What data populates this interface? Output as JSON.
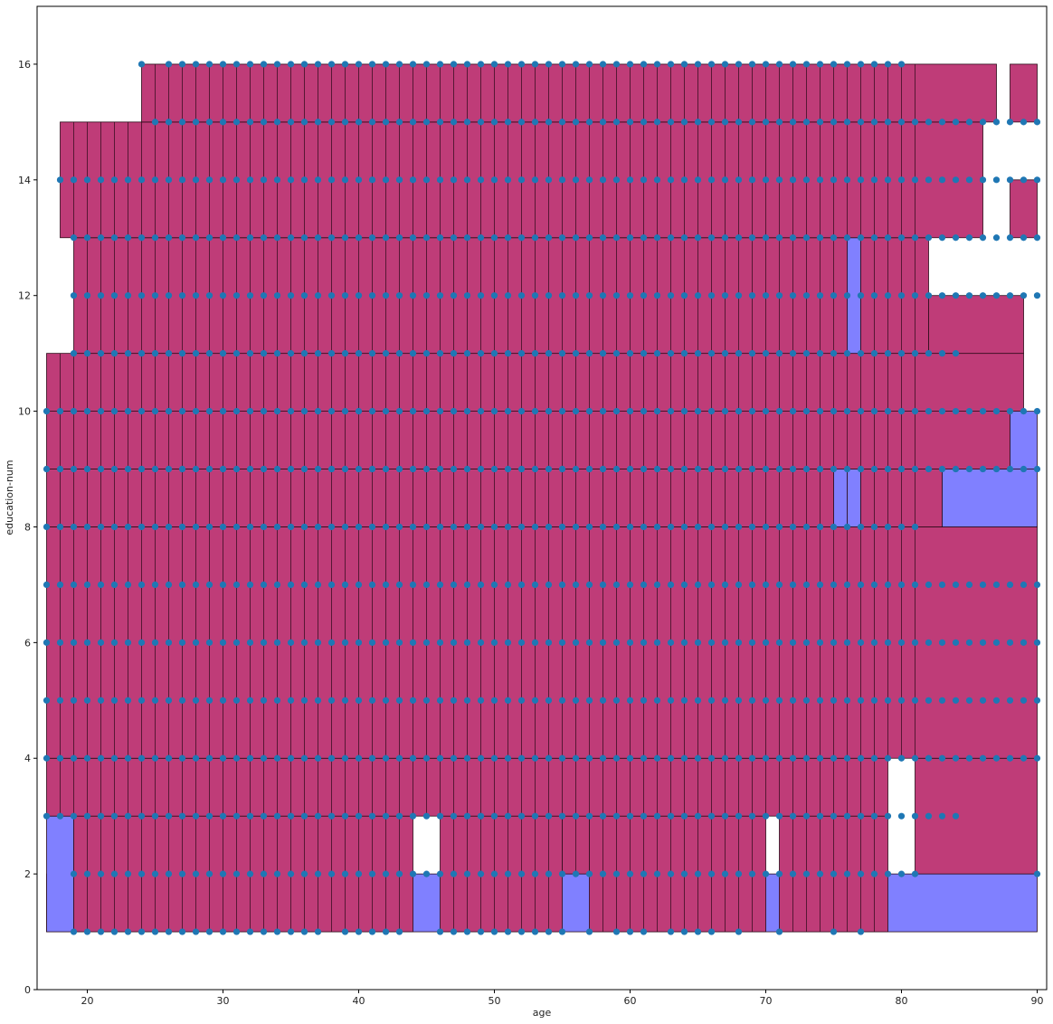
{
  "chart_data": {
    "type": "scatter",
    "xlabel": "age",
    "ylabel": "education-num",
    "xlim": [
      16.3,
      90.7
    ],
    "ylim": [
      0,
      17
    ],
    "xticks": [
      20,
      30,
      40,
      50,
      60,
      70,
      80,
      90
    ],
    "yticks": [
      0,
      2,
      4,
      6,
      8,
      10,
      12,
      14,
      16
    ],
    "grid": false,
    "colors": {
      "magenta_region": "#bf3c78",
      "blue_region": "#8080ff",
      "points": "#1f77b4",
      "edge": "#2a0a18"
    },
    "regions": [
      {
        "x0": 17,
        "x1": 90,
        "y0": 1,
        "y1": 2,
        "class": "blue"
      },
      {
        "x0": 17,
        "x1": 19,
        "y0": 1,
        "y1": 3,
        "class": "blue"
      },
      {
        "x0": 19,
        "x1": 44,
        "y0": 1,
        "y1": 3,
        "class": "magenta"
      },
      {
        "x0": 46,
        "x1": 55,
        "y0": 1,
        "y1": 3,
        "class": "magenta"
      },
      {
        "x0": 55,
        "x1": 57,
        "y0": 2,
        "y1": 3,
        "class": "magenta"
      },
      {
        "x0": 57,
        "x1": 70,
        "y0": 1,
        "y1": 3,
        "class": "magenta"
      },
      {
        "x0": 71,
        "x1": 79,
        "y0": 1,
        "y1": 3,
        "class": "magenta"
      },
      {
        "x0": 17,
        "x1": 79,
        "y0": 3,
        "y1": 4,
        "class": "magenta"
      },
      {
        "x0": 81,
        "x1": 90,
        "y0": 2,
        "y1": 4,
        "class": "magenta"
      },
      {
        "x0": 17,
        "x1": 90,
        "y0": 4,
        "y1": 8,
        "class": "magenta"
      },
      {
        "x0": 17,
        "x1": 75,
        "y0": 8,
        "y1": 9,
        "class": "magenta"
      },
      {
        "x0": 75,
        "x1": 76,
        "y0": 8,
        "y1": 9,
        "class": "blue"
      },
      {
        "x0": 76,
        "x1": 77,
        "y0": 8,
        "y1": 9,
        "class": "blue"
      },
      {
        "x0": 77,
        "x1": 83,
        "y0": 8,
        "y1": 9,
        "class": "magenta"
      },
      {
        "x0": 83,
        "x1": 90,
        "y0": 8,
        "y1": 9,
        "class": "blue"
      },
      {
        "x0": 17,
        "x1": 88,
        "y0": 9,
        "y1": 10,
        "class": "magenta"
      },
      {
        "x0": 88,
        "x1": 90,
        "y0": 9,
        "y1": 10,
        "class": "blue"
      },
      {
        "x0": 17,
        "x1": 89,
        "y0": 10,
        "y1": 11,
        "class": "magenta"
      },
      {
        "x0": 19,
        "x1": 76,
        "y0": 11,
        "y1": 13,
        "class": "magenta"
      },
      {
        "x0": 76,
        "x1": 77,
        "y0": 11,
        "y1": 13,
        "class": "blue"
      },
      {
        "x0": 77,
        "x1": 82,
        "y0": 11,
        "y1": 13,
        "class": "magenta"
      },
      {
        "x0": 82,
        "x1": 89,
        "y0": 11,
        "y1": 12,
        "class": "magenta"
      },
      {
        "x0": 18,
        "x1": 86,
        "y0": 13,
        "y1": 15,
        "class": "magenta"
      },
      {
        "x0": 88,
        "x1": 90,
        "y0": 13,
        "y1": 14,
        "class": "magenta"
      },
      {
        "x0": 24,
        "x1": 87,
        "y0": 15,
        "y1": 16,
        "class": "magenta"
      },
      {
        "x0": 88,
        "x1": 90,
        "y0": 15,
        "y1": 16,
        "class": "magenta"
      }
    ],
    "separators": [
      18,
      19,
      20,
      21,
      22,
      23,
      24,
      25,
      26,
      27,
      28,
      29,
      30,
      31,
      32,
      33,
      34,
      35,
      36,
      37,
      38,
      39,
      40,
      41,
      42,
      43,
      44,
      45,
      46,
      47,
      48,
      49,
      50,
      51,
      52,
      53,
      54,
      55,
      56,
      57,
      58,
      59,
      60,
      61,
      62,
      63,
      64,
      65,
      66,
      67,
      68,
      69,
      70,
      71,
      72,
      73,
      74,
      75,
      76,
      77,
      78,
      79,
      80,
      81
    ],
    "points_y": [
      1,
      2,
      3,
      4,
      5,
      6,
      7,
      8,
      9,
      10,
      11,
      12,
      13,
      14,
      15,
      16
    ],
    "points_xrange": [
      17,
      90
    ],
    "points": [
      {
        "x": 19,
        "y": 1
      },
      {
        "x": 20,
        "y": 1
      },
      {
        "x": 21,
        "y": 1
      },
      {
        "x": 22,
        "y": 1
      },
      {
        "x": 23,
        "y": 1
      },
      {
        "x": 24,
        "y": 1
      },
      {
        "x": 25,
        "y": 1
      },
      {
        "x": 26,
        "y": 1
      },
      {
        "x": 27,
        "y": 1
      },
      {
        "x": 28,
        "y": 1
      },
      {
        "x": 29,
        "y": 1
      },
      {
        "x": 30,
        "y": 1
      },
      {
        "x": 31,
        "y": 1
      },
      {
        "x": 32,
        "y": 1
      },
      {
        "x": 33,
        "y": 1
      },
      {
        "x": 34,
        "y": 1
      },
      {
        "x": 35,
        "y": 1
      },
      {
        "x": 36,
        "y": 1
      },
      {
        "x": 37,
        "y": 1
      },
      {
        "x": 39,
        "y": 1
      },
      {
        "x": 40,
        "y": 1
      },
      {
        "x": 41,
        "y": 1
      },
      {
        "x": 42,
        "y": 1
      },
      {
        "x": 43,
        "y": 1
      },
      {
        "x": 46,
        "y": 1
      },
      {
        "x": 47,
        "y": 1
      },
      {
        "x": 48,
        "y": 1
      },
      {
        "x": 49,
        "y": 1
      },
      {
        "x": 50,
        "y": 1
      },
      {
        "x": 51,
        "y": 1
      },
      {
        "x": 52,
        "y": 1
      },
      {
        "x": 53,
        "y": 1
      },
      {
        "x": 54,
        "y": 1
      },
      {
        "x": 55,
        "y": 1
      },
      {
        "x": 57,
        "y": 1
      },
      {
        "x": 59,
        "y": 1
      },
      {
        "x": 60,
        "y": 1
      },
      {
        "x": 61,
        "y": 1
      },
      {
        "x": 63,
        "y": 1
      },
      {
        "x": 64,
        "y": 1
      },
      {
        "x": 65,
        "y": 1
      },
      {
        "x": 66,
        "y": 1
      },
      {
        "x": 68,
        "y": 1
      },
      {
        "x": 71,
        "y": 1
      },
      {
        "x": 75,
        "y": 1
      },
      {
        "x": 77,
        "y": 1
      },
      {
        "x": 90,
        "y": 2
      },
      {
        "x": 79,
        "y": 2
      },
      {
        "x": 78,
        "y": 2
      },
      {
        "x": 80,
        "y": 2
      },
      {
        "x": 81,
        "y": 2
      }
    ]
  }
}
